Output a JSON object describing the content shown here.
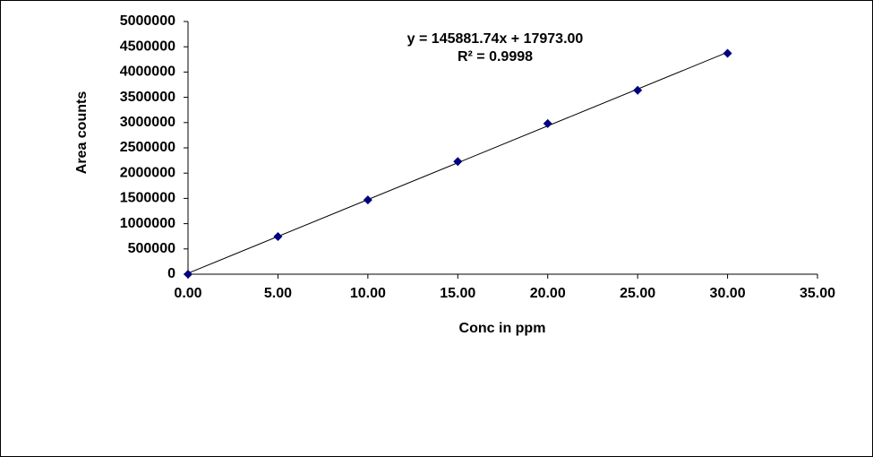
{
  "chart_data": {
    "type": "scatter",
    "x_label": "Conc in ppm",
    "y_label": "Area counts",
    "annotations": [
      "y = 145881.74x + 17973.00",
      "R² = 0.9998"
    ],
    "x": [
      0,
      5,
      10,
      15,
      20,
      25,
      30
    ],
    "series": [
      {
        "color": "#000080",
        "values": [
          0,
          745000,
          1470000,
          2230000,
          2980000,
          3640000,
          4370000
        ]
      }
    ],
    "trendline": true,
    "trendline_color": "#000000",
    "xlim": [
      0,
      35
    ],
    "xticks": [
      {
        "value": 0,
        "label": "0.00"
      },
      {
        "value": 5,
        "label": "5.00"
      },
      {
        "value": 10,
        "label": "10.00"
      },
      {
        "value": 15,
        "label": "15.00"
      },
      {
        "value": 20,
        "label": "20.00"
      },
      {
        "value": 25,
        "label": "25.00"
      },
      {
        "value": 30,
        "label": "30.00"
      },
      {
        "value": 35,
        "label": "35.00"
      }
    ],
    "ylim": [
      0,
      5000000
    ],
    "yticks": [
      0,
      500000,
      1000000,
      1500000,
      2000000,
      2500000,
      3000000,
      3500000,
      4000000,
      4500000,
      5000000
    ],
    "grid": false
  }
}
